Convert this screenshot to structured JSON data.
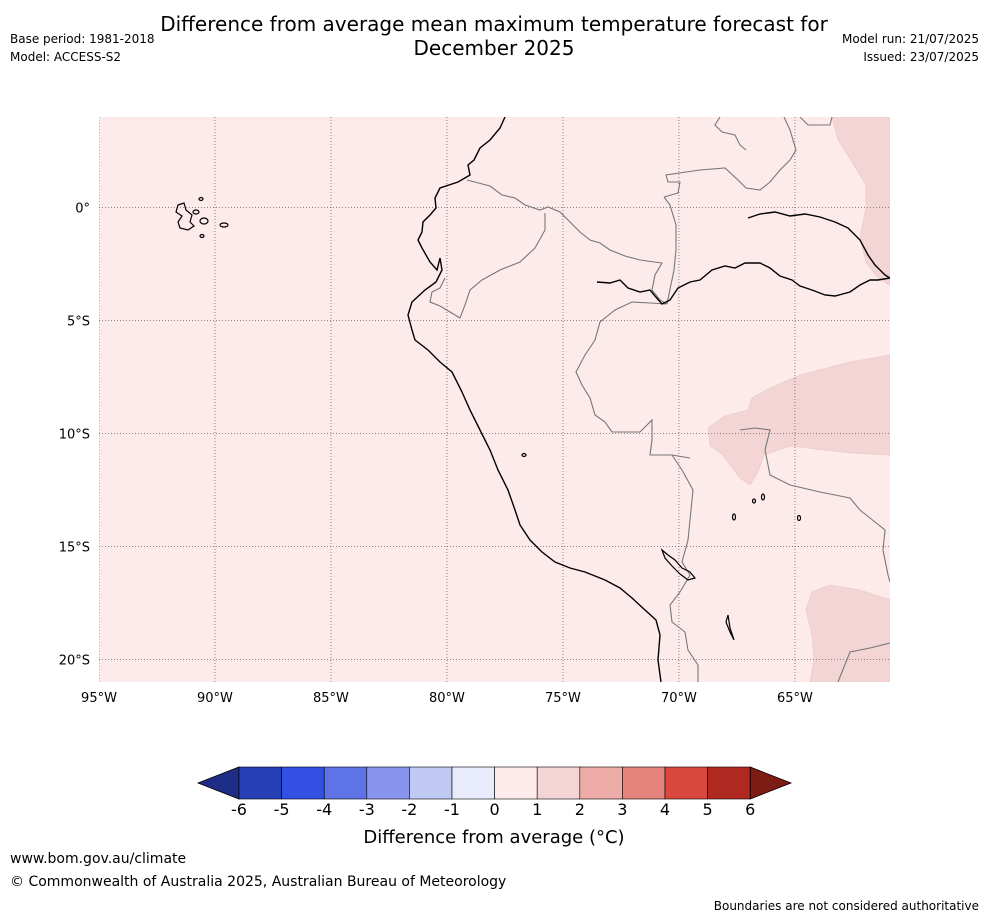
{
  "title": {
    "line1": "Difference from average mean maximum temperature forecast for",
    "line2": "December 2025"
  },
  "meta": {
    "base_period": "Base period: 1981-2018",
    "model": "Model: ACCESS-S2",
    "model_run": "Model run: 21/07/2025",
    "issued": "Issued: 23/07/2025"
  },
  "map": {
    "lat_labels": [
      "0°",
      "5°S",
      "10°S",
      "15°S",
      "20°S"
    ],
    "lat_values": [
      0,
      -5,
      -10,
      -15,
      -20
    ],
    "lon_labels": [
      "95°W",
      "90°W",
      "85°W",
      "80°W",
      "75°W",
      "70°W",
      "65°W"
    ],
    "lon_values": [
      -95,
      -90,
      -85,
      -80,
      -75,
      -70,
      -65
    ],
    "lon_range": [
      -95,
      -60.9
    ],
    "lat_range": [
      -21,
      4
    ],
    "background_color": "#fcebea",
    "anomaly_1_2_color": "#f2d5d4"
  },
  "colorbar": {
    "ticks": [
      "-6",
      "-5",
      "-4",
      "-3",
      "-2",
      "-1",
      "0",
      "1",
      "2",
      "3",
      "4",
      "5",
      "6"
    ],
    "colors": [
      "#1e2d87",
      "#273fb5",
      "#3250e2",
      "#5e74e6",
      "#8796ec",
      "#c0c8f4",
      "#e7ebfb",
      "#fcebea",
      "#f2d5d4",
      "#edaca8",
      "#e5847c",
      "#d9483d",
      "#b02921",
      "#7d1b15"
    ],
    "label": "Difference from average (°C)"
  },
  "footer": {
    "url": "www.bom.gov.au/climate",
    "copyright": "© Commonwealth of Australia 2025, Australian Bureau of Meteorology",
    "note": "Boundaries are not considered authoritative"
  }
}
